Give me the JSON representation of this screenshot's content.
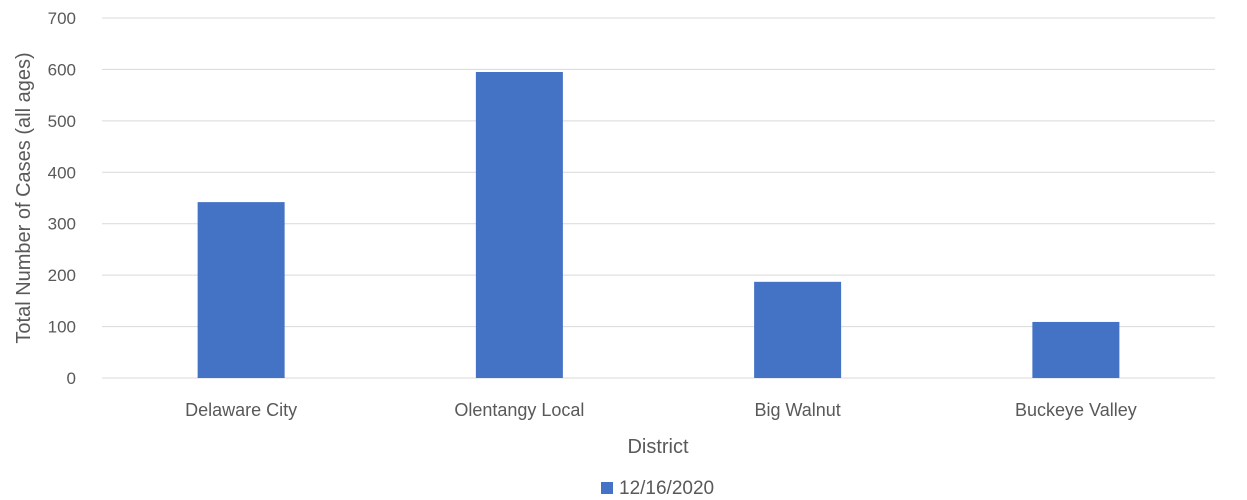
{
  "chart_data": {
    "type": "bar",
    "title": "",
    "xlabel": "District",
    "ylabel": "Total Number of Cases (all ages)",
    "categories": [
      "Delaware City",
      "Olentangy Local",
      "Big Walnut",
      "Buckeye Valley"
    ],
    "series": [
      {
        "name": "12/16/2020",
        "values": [
          342,
          595,
          187,
          109
        ],
        "color": "#4472c4"
      }
    ],
    "ylim": [
      0,
      700
    ],
    "yticks": [
      0,
      100,
      200,
      300,
      400,
      500,
      600,
      700
    ],
    "grid": true,
    "legend_position": "bottom"
  }
}
